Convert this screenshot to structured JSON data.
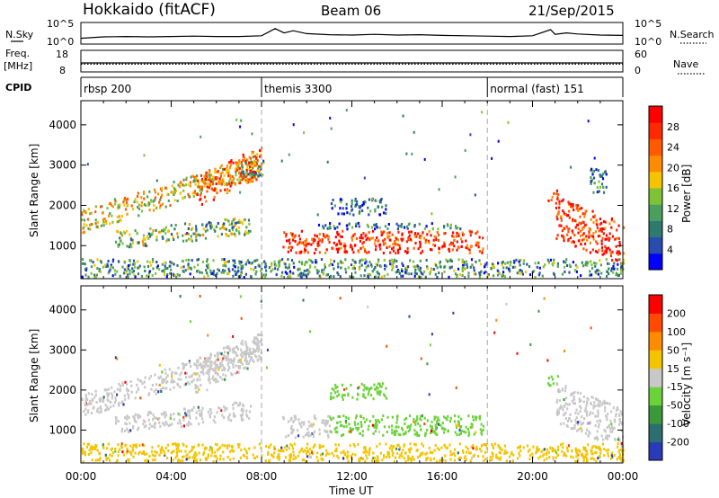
{
  "header": {
    "station": "Hokkaido (fitACF)",
    "beam": "Beam 06",
    "date": "21/Sep/2015"
  },
  "left_labels": {
    "nsky": "N.Sky",
    "freq": "Freq.",
    "freq_unit": "[MHz]",
    "cpid": "CPID"
  },
  "right_labels": {
    "nsearch": "N.Search",
    "nave": "Nave"
  },
  "chart_data": [
    {
      "type": "line",
      "panel": "noise",
      "left_ticks": [
        "10^5",
        "10^0"
      ],
      "right_ticks": [
        "10^5",
        "10^0"
      ],
      "xlim": [
        0,
        24
      ],
      "series": [
        {
          "name": "N.Sky",
          "x": [
            0,
            1,
            2,
            3,
            4,
            5,
            6,
            7,
            8,
            8.6,
            9,
            9.4,
            10,
            11,
            12,
            13,
            14,
            15,
            16,
            17,
            18,
            19,
            20,
            20.8,
            21,
            21.5,
            22,
            23,
            24
          ],
          "y": [
            1.1,
            1.5,
            1.6,
            1.5,
            1.6,
            1.7,
            1.6,
            1.6,
            1.8,
            3.8,
            2.6,
            3.2,
            2.4,
            2.1,
            2.0,
            2.2,
            2.0,
            2.1,
            1.9,
            1.8,
            1.7,
            1.6,
            1.8,
            3.5,
            2.2,
            2.6,
            2.3,
            2.0,
            1.9
          ]
        }
      ]
    },
    {
      "type": "line",
      "panel": "freq_nave",
      "left_ticks": [
        "18",
        "8"
      ],
      "right_ticks": [
        "60",
        "0"
      ],
      "xlim": [
        0,
        24
      ],
      "freq_mhz_level": 12,
      "nave_level": 20
    },
    {
      "type": "table",
      "panel": "cpid",
      "segments": [
        {
          "start": 0,
          "label": "rbsp 200"
        },
        {
          "start": 8,
          "label": "themis 3300"
        },
        {
          "start": 18,
          "label": "normal (fast) 151"
        }
      ]
    },
    {
      "type": "heatmap",
      "panel": "power",
      "ylabel": "Slant Range [km]",
      "xlim": [
        0,
        24
      ],
      "ylim": [
        180,
        4600
      ],
      "yticks": [
        1000,
        2000,
        3000,
        4000
      ],
      "colorbar": {
        "label": "Power [dB]",
        "ticks": [
          "28",
          "24",
          "20",
          "16",
          "12",
          "8",
          "4"
        ],
        "colors": [
          "#0000ff",
          "#2a4bb0",
          "#2d7a6e",
          "#4a9f5e",
          "#7fc236",
          "#f5c400",
          "#ff8c00",
          "#ff5a00",
          "#ff2a00",
          "#ff0000"
        ]
      },
      "regions": [
        {
          "t0": 0.0,
          "t1": 8.0,
          "r0": 1280,
          "r1": 1850,
          "level": 0.55,
          "slope": 180
        },
        {
          "t0": 1.5,
          "t1": 7.5,
          "r0": 900,
          "r1": 1350,
          "level": 0.4,
          "slope": 60
        },
        {
          "t0": 5.0,
          "t1": 8.0,
          "r0": 1900,
          "r1": 2700,
          "level": 0.75,
          "slope": 260
        },
        {
          "t0": 7.0,
          "t1": 8.1,
          "r0": 2700,
          "r1": 3100,
          "level": 0.35,
          "slope": 0
        },
        {
          "t0": 8.9,
          "t1": 17.8,
          "r0": 800,
          "r1": 1350,
          "level": 0.85,
          "slope": 0
        },
        {
          "t0": 10.5,
          "t1": 17.0,
          "r0": 1400,
          "r1": 1550,
          "level": 0.25,
          "slope": 0
        },
        {
          "t0": 11.0,
          "t1": 13.5,
          "r0": 1750,
          "r1": 2150,
          "level": 0.2,
          "slope": 0
        },
        {
          "t0": 20.6,
          "t1": 21.1,
          "r0": 2100,
          "r1": 2350,
          "level": 0.8,
          "slope": 0
        },
        {
          "t0": 21.0,
          "t1": 24.0,
          "r0": 1150,
          "r1": 2200,
          "level": 0.85,
          "slope": -220
        },
        {
          "t0": 22.5,
          "t1": 23.3,
          "r0": 2300,
          "r1": 2900,
          "level": 0.2,
          "slope": 0
        },
        {
          "t0": 0.0,
          "t1": 24.0,
          "r0": 200,
          "r1": 650,
          "level": 0.3,
          "slope": 0
        }
      ]
    },
    {
      "type": "heatmap",
      "panel": "velocity",
      "ylabel": "Slant Range [km]",
      "xlabel": "Time UT",
      "xlim": [
        0,
        24
      ],
      "ylim": [
        180,
        4600
      ],
      "xticks": [
        "00:00",
        "04:00",
        "08:00",
        "12:00",
        "16:00",
        "20:00",
        "00:00"
      ],
      "yticks": [
        1000,
        2000,
        3000,
        4000
      ],
      "colorbar": {
        "label": "Velocity [m s⁻¹]",
        "ticks": [
          "200",
          "100",
          "50",
          "15",
          "-15",
          "-50",
          "-100",
          "-200"
        ],
        "colors": [
          "#2a3ab8",
          "#2d6e70",
          "#3a9a3a",
          "#6cd23a",
          "#c8c8c8",
          "#f5c400",
          "#ff8c00",
          "#ff4a00",
          "#ff0000"
        ]
      },
      "regions": [
        {
          "t0": 0.0,
          "t1": 8.0,
          "r0": 1280,
          "r1": 1850,
          "color": "#c8c8c8",
          "slope": 180
        },
        {
          "t0": 1.5,
          "t1": 7.5,
          "r0": 900,
          "r1": 1350,
          "color": "#c8c8c8",
          "slope": 60
        },
        {
          "t0": 5.0,
          "t1": 8.0,
          "r0": 1900,
          "r1": 2700,
          "color": "#c8c8c8",
          "slope": 260
        },
        {
          "t0": 8.9,
          "t1": 11.0,
          "r0": 800,
          "r1": 1350,
          "color": "#c8c8c8",
          "slope": 0
        },
        {
          "t0": 11.0,
          "t1": 17.8,
          "r0": 850,
          "r1": 1350,
          "color": "#6cd23a",
          "slope": 0
        },
        {
          "t0": 11.0,
          "t1": 13.5,
          "r0": 1750,
          "r1": 2150,
          "color": "#6cd23a",
          "slope": 0
        },
        {
          "t0": 20.6,
          "t1": 21.1,
          "r0": 2100,
          "r1": 2350,
          "color": "#6cd23a",
          "slope": 0
        },
        {
          "t0": 21.0,
          "t1": 24.0,
          "r0": 1150,
          "r1": 2200,
          "color": "#c8c8c8",
          "slope": -220
        },
        {
          "t0": 0.0,
          "t1": 24.0,
          "r0": 200,
          "r1": 650,
          "color": "#f5c400",
          "slope": 0
        }
      ],
      "sea_scatter_color": "#c8c8c8"
    }
  ]
}
